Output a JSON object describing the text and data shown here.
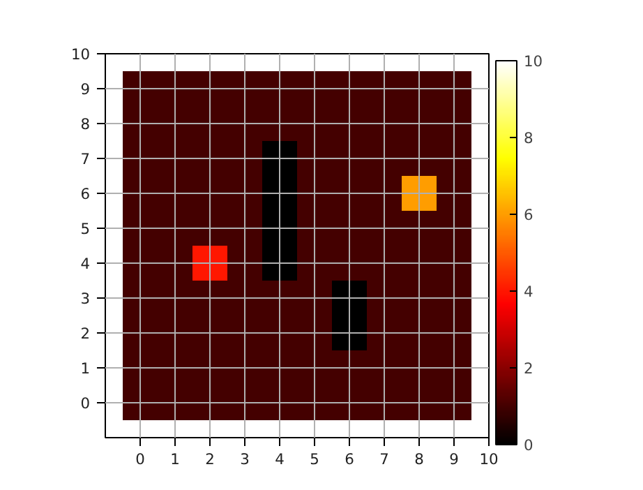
{
  "chart_data": {
    "type": "heatmap",
    "x": [
      0,
      1,
      2,
      3,
      4,
      5,
      6,
      7,
      8,
      9
    ],
    "y": [
      9,
      8,
      7,
      6,
      5,
      4,
      3,
      2,
      1,
      0
    ],
    "cells": [
      [
        1,
        1,
        1,
        1,
        1,
        1,
        1,
        1,
        1,
        1
      ],
      [
        1,
        1,
        1,
        1,
        1,
        1,
        1,
        1,
        1,
        1
      ],
      [
        1,
        1,
        1,
        1,
        0,
        1,
        1,
        1,
        1,
        1
      ],
      [
        1,
        1,
        1,
        1,
        0,
        1,
        1,
        1,
        6,
        1
      ],
      [
        1,
        1,
        1,
        1,
        0,
        1,
        1,
        1,
        1,
        1
      ],
      [
        1,
        1,
        4,
        1,
        0,
        1,
        1,
        1,
        1,
        1
      ],
      [
        1,
        1,
        1,
        1,
        1,
        1,
        0,
        1,
        1,
        1
      ],
      [
        1,
        1,
        1,
        1,
        1,
        1,
        0,
        1,
        1,
        1
      ],
      [
        1,
        1,
        1,
        1,
        1,
        1,
        1,
        1,
        1,
        1
      ],
      [
        1,
        1,
        1,
        1,
        1,
        1,
        1,
        1,
        1,
        1
      ]
    ],
    "xlim": [
      -1,
      10
    ],
    "xticks": [
      0,
      1,
      2,
      3,
      4,
      5,
      6,
      7,
      8,
      9,
      10
    ],
    "ylim": [
      -1,
      10
    ],
    "yticks": [
      0,
      1,
      2,
      3,
      4,
      5,
      6,
      7,
      8,
      9,
      10
    ],
    "clim": [
      0,
      10
    ],
    "cticks": [
      0,
      2,
      4,
      6,
      8,
      10
    ],
    "grid": true
  }
}
